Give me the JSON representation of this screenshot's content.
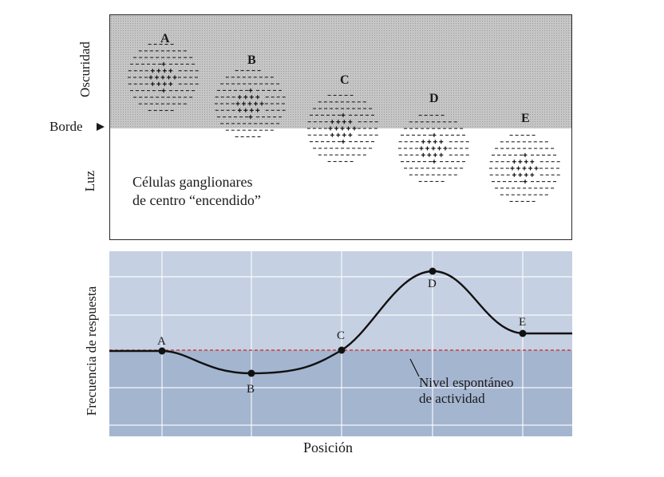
{
  "top": {
    "label_dark": "Oscuridad",
    "label_light": "Luz",
    "label_edge": "Borde",
    "caption_line1": "Células ganglionares",
    "caption_line2": "de centro “encendido”",
    "cells": [
      "A",
      "B",
      "C",
      "D",
      "E"
    ]
  },
  "bottom": {
    "ylabel": "Frecuencia de respuesta",
    "xlabel": "Posición",
    "note_line1": "Nivel espontáneo",
    "note_line2": "de actividad",
    "points": [
      "A",
      "B",
      "C",
      "D",
      "E"
    ]
  },
  "colors": {
    "dark_bg": "#c6c6c6",
    "plot_upper": "#c5d0e2",
    "plot_lower": "#a4b5d0",
    "baseline": "#d23a3a"
  }
}
